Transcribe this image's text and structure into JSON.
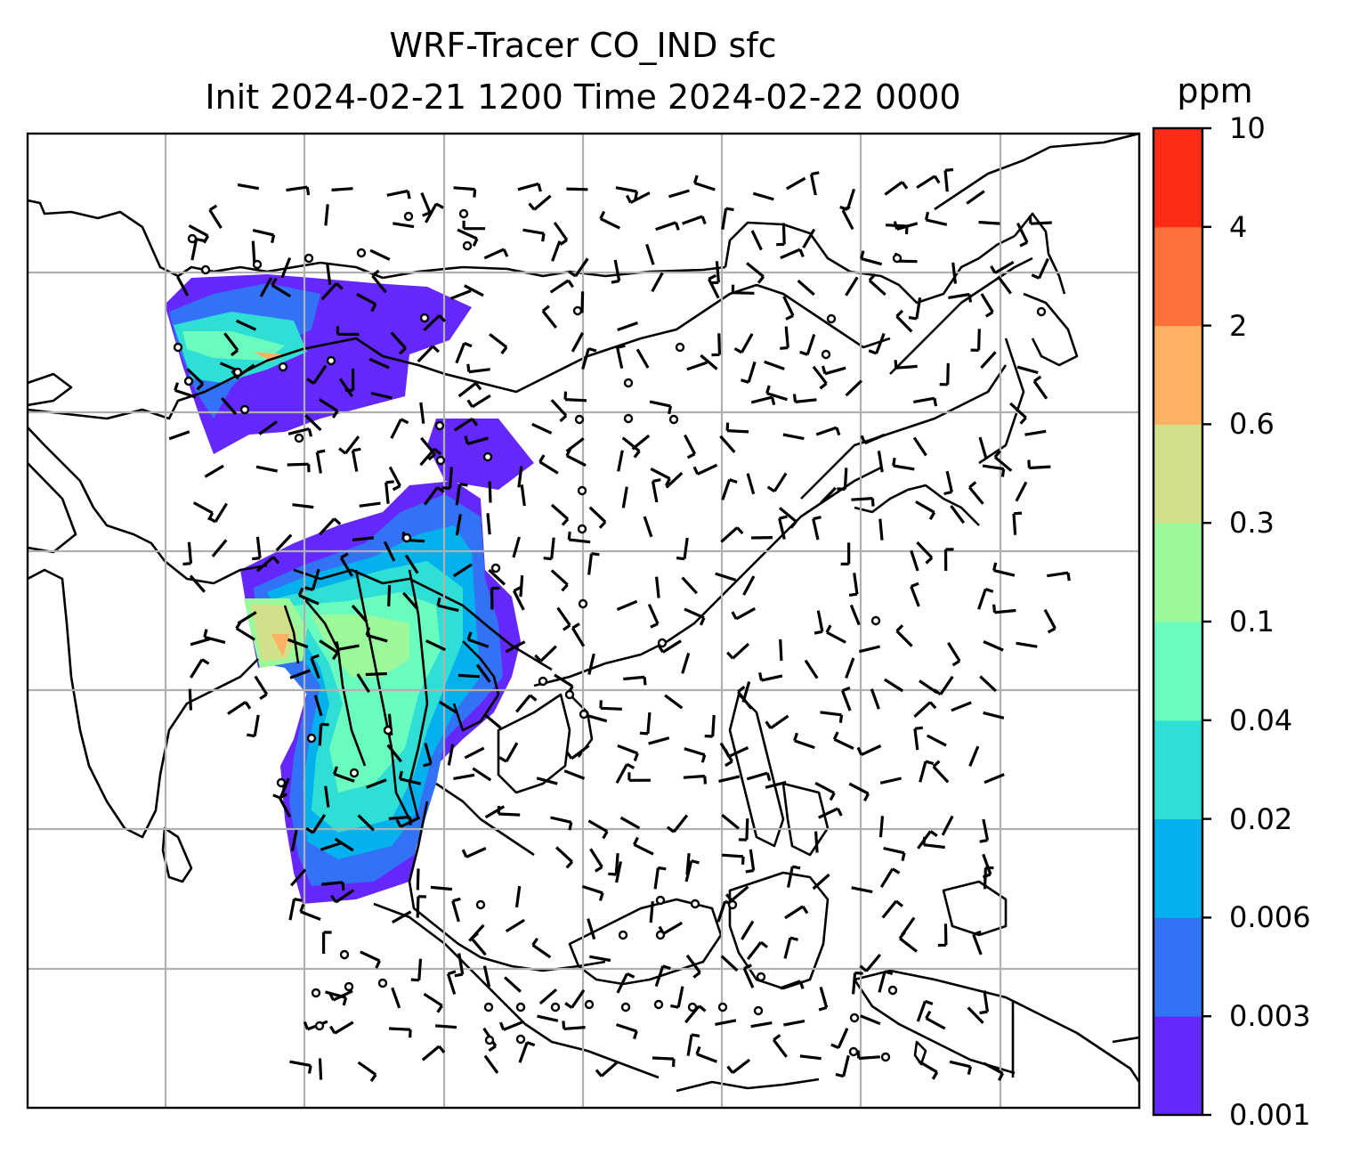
{
  "title": {
    "line1": "WRF-Tracer CO_IND sfc",
    "line2": "Init 2024-02-21 1200 Time 2024-02-22 0000"
  },
  "colorbar": {
    "unit": "ppm",
    "levels": [
      "0.001",
      "0.003",
      "0.006",
      "0.02",
      "0.04",
      "0.1",
      "0.3",
      "0.6",
      "2",
      "4",
      "10"
    ],
    "colors": [
      "#6528fb",
      "#3273f5",
      "#03b1ec",
      "#2fdfd5",
      "#6afcbf",
      "#9cf99b",
      "#d1e189",
      "#fdb163",
      "#ff703a",
      "#ff2d17"
    ]
  },
  "map": {
    "gridlines": "on",
    "barbs": "on"
  }
}
